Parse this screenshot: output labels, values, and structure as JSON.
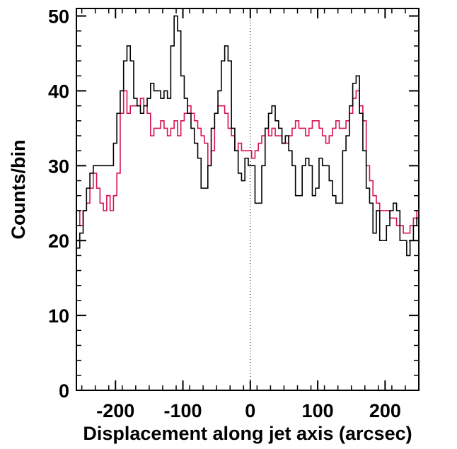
{
  "chart_data": {
    "type": "line",
    "step": true,
    "title": "",
    "xlabel": "Displacement along jet axis (arcsec)",
    "ylabel": "Counts/bin",
    "xlim": [
      -258,
      250
    ],
    "ylim": [
      0,
      51
    ],
    "xticks": [
      -200,
      -100,
      0,
      100,
      200
    ],
    "yticks": [
      0,
      10,
      20,
      30,
      40,
      50
    ],
    "grid": false,
    "reference_line": {
      "x": 0,
      "style": "dotted"
    },
    "series": [
      {
        "color": "#000000",
        "x": [
          -258,
          -253,
          -248,
          -243,
          -238,
          -233,
          -228,
          -223,
          -218,
          -213,
          -208,
          -203,
          -198,
          -193,
          -188,
          -183,
          -178,
          -173,
          -168,
          -163,
          -158,
          -153,
          -148,
          -143,
          -138,
          -133,
          -128,
          -123,
          -118,
          -113,
          -108,
          -103,
          -98,
          -93,
          -88,
          -83,
          -78,
          -73,
          -68,
          -63,
          -58,
          -53,
          -48,
          -43,
          -38,
          -33,
          -28,
          -23,
          -18,
          -13,
          -8,
          -3,
          2,
          7,
          12,
          17,
          22,
          27,
          32,
          37,
          42,
          47,
          52,
          57,
          62,
          67,
          72,
          77,
          82,
          87,
          92,
          97,
          102,
          107,
          112,
          117,
          122,
          127,
          132,
          137,
          142,
          147,
          152,
          157,
          162,
          167,
          172,
          177,
          182,
          187,
          192,
          197,
          202,
          207,
          212,
          217,
          222,
          227,
          232,
          237,
          242,
          247
        ],
        "y": [
          19,
          21,
          24,
          27,
          29,
          30,
          30,
          30,
          30,
          30,
          30,
          33,
          37,
          40,
          44,
          46,
          44,
          39,
          38,
          37,
          38,
          39,
          41,
          40,
          40,
          39,
          40,
          39,
          46,
          50,
          48,
          42,
          39,
          37,
          35,
          33,
          31,
          27,
          27,
          30,
          35,
          37,
          40,
          44,
          46,
          44,
          35,
          32,
          29,
          28,
          31,
          30,
          30,
          25,
          25,
          30,
          35,
          37,
          38,
          36,
          35,
          33,
          34,
          32,
          30,
          26,
          26,
          30,
          31,
          30,
          26,
          27,
          31,
          30,
          30,
          28,
          26,
          25,
          25,
          32,
          34,
          38,
          41,
          42,
          37,
          32,
          27,
          25,
          21,
          24,
          20,
          20,
          22,
          24,
          25,
          24,
          20,
          20,
          18,
          20,
          22,
          23
        ],
        "last_x": 250
      },
      {
        "color": "#d6124f",
        "x": [
          -258,
          -253,
          -248,
          -243,
          -238,
          -233,
          -228,
          -223,
          -218,
          -213,
          -208,
          -203,
          -198,
          -193,
          -188,
          -183,
          -178,
          -173,
          -168,
          -163,
          -158,
          -153,
          -148,
          -143,
          -138,
          -133,
          -128,
          -123,
          -118,
          -113,
          -108,
          -103,
          -98,
          -93,
          -88,
          -83,
          -78,
          -73,
          -68,
          -63,
          -58,
          -53,
          -48,
          -43,
          -38,
          -33,
          -28,
          -23,
          -18,
          -13,
          -8,
          -3,
          2,
          7,
          12,
          17,
          22,
          27,
          32,
          37,
          42,
          47,
          52,
          57,
          62,
          67,
          72,
          77,
          82,
          87,
          92,
          97,
          102,
          107,
          112,
          117,
          122,
          127,
          132,
          137,
          142,
          147,
          152,
          157,
          162,
          167,
          172,
          177,
          182,
          187,
          192,
          197,
          202,
          207,
          212,
          217,
          222,
          227,
          232,
          237,
          242,
          247
        ],
        "y": [
          24,
          22,
          24,
          25,
          27,
          29,
          27,
          25,
          24,
          26,
          24,
          26,
          29,
          37,
          40,
          37,
          38,
          38,
          38,
          39,
          38,
          37,
          34,
          35,
          35,
          36,
          35,
          34,
          35,
          36,
          34,
          36,
          37,
          38,
          37,
          36,
          35,
          34,
          33,
          30,
          32,
          37,
          38,
          38,
          37,
          35,
          34,
          32,
          33,
          32,
          32,
          32,
          31,
          32,
          33,
          34,
          35,
          34,
          35,
          34,
          34,
          33,
          33,
          34,
          35,
          36,
          35,
          35,
          34,
          35,
          36,
          36,
          35,
          34,
          33,
          34,
          35,
          36,
          35,
          35,
          36,
          37,
          39,
          40,
          38,
          36,
          30,
          28,
          26,
          25,
          24,
          24,
          24,
          23,
          23,
          22,
          22,
          21,
          21,
          22,
          23,
          24
        ],
        "last_x": 250
      }
    ]
  }
}
